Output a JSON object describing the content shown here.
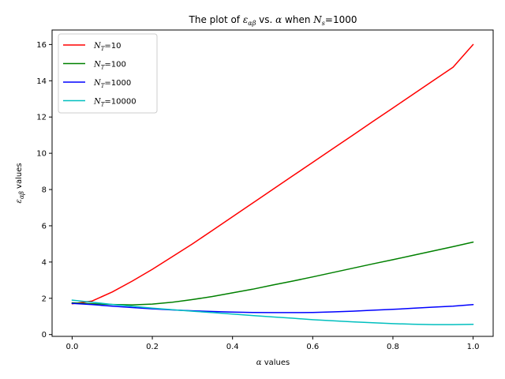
{
  "chart_data": {
    "type": "line",
    "title": {
      "prefix": "The plot of ",
      "eps": "ε",
      "eps_sub": "αβ",
      "middle": " vs. ",
      "alpha": "α",
      "when": " when ",
      "N": "N",
      "N_sub": "s",
      "suffix": "=1000"
    },
    "xlabel": {
      "alpha": "α",
      "text": " values"
    },
    "ylabel": {
      "eps": "ε",
      "eps_sub": "αβ",
      "text": " values"
    },
    "xlim": [
      -0.05,
      1.05
    ],
    "ylim": [
      -0.1,
      16.8
    ],
    "xticks": [
      0.0,
      0.2,
      0.4,
      0.6,
      0.8,
      1.0
    ],
    "xtick_labels": [
      "0.0",
      "0.2",
      "0.4",
      "0.6",
      "0.8",
      "1.0"
    ],
    "yticks": [
      0,
      2,
      4,
      6,
      8,
      10,
      12,
      14,
      16
    ],
    "ytick_labels": [
      "0",
      "2",
      "4",
      "6",
      "8",
      "10",
      "12",
      "14",
      "16"
    ],
    "grid": false,
    "legend_position": "top-left",
    "x": [
      0.0,
      0.05,
      0.1,
      0.15,
      0.2,
      0.25,
      0.3,
      0.35,
      0.4,
      0.45,
      0.5,
      0.55,
      0.6,
      0.65,
      0.7,
      0.75,
      0.8,
      0.85,
      0.9,
      0.95,
      1.0
    ],
    "series": [
      {
        "label_N": "N",
        "label_sub": "T",
        "label_val": "=10",
        "color": "#ff0000",
        "values": [
          1.7,
          1.85,
          2.35,
          2.95,
          3.6,
          4.3,
          5.0,
          5.75,
          6.5,
          7.25,
          8.0,
          8.75,
          9.5,
          10.25,
          11.0,
          11.75,
          12.5,
          13.25,
          14.0,
          14.75,
          16.0
        ]
      },
      {
        "label_N": "N",
        "label_sub": "T",
        "label_val": "=100",
        "color": "#008000",
        "values": [
          1.75,
          1.7,
          1.66,
          1.64,
          1.68,
          1.78,
          1.93,
          2.1,
          2.3,
          2.5,
          2.73,
          2.95,
          3.18,
          3.42,
          3.66,
          3.9,
          4.13,
          4.37,
          4.61,
          4.85,
          5.1
        ]
      },
      {
        "label_N": "N",
        "label_sub": "T",
        "label_val": "=1000",
        "color": "#0000ff",
        "values": [
          1.72,
          1.65,
          1.57,
          1.49,
          1.42,
          1.36,
          1.31,
          1.27,
          1.24,
          1.22,
          1.21,
          1.21,
          1.22,
          1.25,
          1.29,
          1.34,
          1.39,
          1.45,
          1.51,
          1.57,
          1.65
        ]
      },
      {
        "label_N": "N",
        "label_sub": "T",
        "label_val": "=10000",
        "color": "#00bfbf",
        "values": [
          1.9,
          1.78,
          1.66,
          1.56,
          1.46,
          1.37,
          1.29,
          1.21,
          1.13,
          1.05,
          0.97,
          0.9,
          0.82,
          0.76,
          0.7,
          0.65,
          0.6,
          0.57,
          0.55,
          0.55,
          0.56
        ]
      }
    ]
  }
}
